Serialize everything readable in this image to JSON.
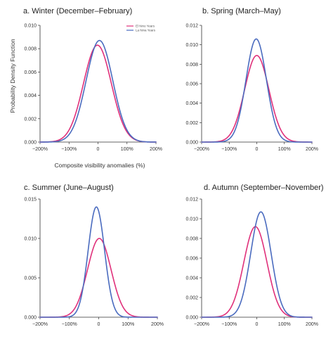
{
  "figure": {
    "ylabel": "Probability Density Function",
    "xlabel": "Composite visibility anomalies (%)"
  },
  "legend": {
    "entries": [
      {
        "name": "El Nino Years",
        "color": "#e0307a"
      },
      {
        "name": "La Nina Years",
        "color": "#4a6bbf"
      }
    ]
  },
  "chart_data": [
    {
      "type": "line",
      "title": "a. Winter (December–February)",
      "xlim": [
        -200,
        200
      ],
      "ylim": [
        0,
        0.01
      ],
      "x_ticks": [
        "−200%",
        "−100%",
        "0",
        "100%",
        "200%"
      ],
      "x_tick_values": [
        -200,
        -100,
        0,
        100,
        200
      ],
      "y_ticks": [
        "0.000",
        "0.002",
        "0.004",
        "0.006",
        "0.008",
        "0.010"
      ],
      "y_tick_values": [
        0,
        0.002,
        0.004,
        0.006,
        0.008,
        0.01
      ],
      "series": [
        {
          "name": "El Nino Years",
          "color": "#e0307a",
          "mean": -2,
          "sd": 48,
          "peak": 0.0083
        },
        {
          "name": "La Nina Years",
          "color": "#4a6bbf",
          "mean": 5,
          "sd": 46,
          "peak": 0.0087
        }
      ]
    },
    {
      "type": "line",
      "title": "b. Spring (March–May)",
      "xlim": [
        -200,
        200
      ],
      "ylim": [
        0,
        0.012
      ],
      "x_ticks": [
        "−200%",
        "−100%",
        "0",
        "100%",
        "200%"
      ],
      "x_tick_values": [
        -200,
        -100,
        0,
        100,
        200
      ],
      "y_ticks": [
        "0.000",
        "0.002",
        "0.004",
        "0.006",
        "0.008",
        "0.010",
        "0.012"
      ],
      "y_tick_values": [
        0,
        0.002,
        0.004,
        0.006,
        0.008,
        0.01,
        0.012
      ],
      "series": [
        {
          "name": "El Nino Years",
          "color": "#e0307a",
          "mean": 0,
          "sd": 44,
          "peak": 0.0089
        },
        {
          "name": "La Nina Years",
          "color": "#4a6bbf",
          "mean": -2,
          "sd": 37,
          "peak": 0.0106
        }
      ]
    },
    {
      "type": "line",
      "title": "c. Summer (June–August)",
      "xlim": [
        -200,
        200
      ],
      "ylim": [
        0,
        0.015
      ],
      "x_ticks": [
        "−200%",
        "−100%",
        "0",
        "100%",
        "200%"
      ],
      "x_tick_values": [
        -200,
        -100,
        0,
        100,
        200
      ],
      "y_ticks": [
        "0.000",
        "0.005",
        "0.010",
        "0.015"
      ],
      "y_tick_values": [
        0,
        0.005,
        0.01,
        0.015
      ],
      "series": [
        {
          "name": "El Nino Years",
          "color": "#e0307a",
          "mean": 2,
          "sd": 40,
          "peak": 0.01
        },
        {
          "name": "La Nina Years",
          "color": "#4a6bbf",
          "mean": -8,
          "sd": 28,
          "peak": 0.014
        }
      ]
    },
    {
      "type": "line",
      "title": "d. Autumn (September–November)",
      "xlim": [
        -200,
        200
      ],
      "ylim": [
        0,
        0.012
      ],
      "x_ticks": [
        "−200%",
        "−100%",
        "0",
        "100%",
        "200%"
      ],
      "x_tick_values": [
        -200,
        -100,
        0,
        100,
        200
      ],
      "y_ticks": [
        "0.000",
        "0.002",
        "0.004",
        "0.006",
        "0.008",
        "0.010",
        "0.012"
      ],
      "y_tick_values": [
        0,
        0.002,
        0.004,
        0.006,
        0.008,
        0.01,
        0.012
      ],
      "series": [
        {
          "name": "El Nino Years",
          "color": "#e0307a",
          "mean": -5,
          "sd": 42,
          "peak": 0.0092
        },
        {
          "name": "La Nina Years",
          "color": "#4a6bbf",
          "mean": 15,
          "sd": 37,
          "peak": 0.0107
        }
      ]
    }
  ]
}
